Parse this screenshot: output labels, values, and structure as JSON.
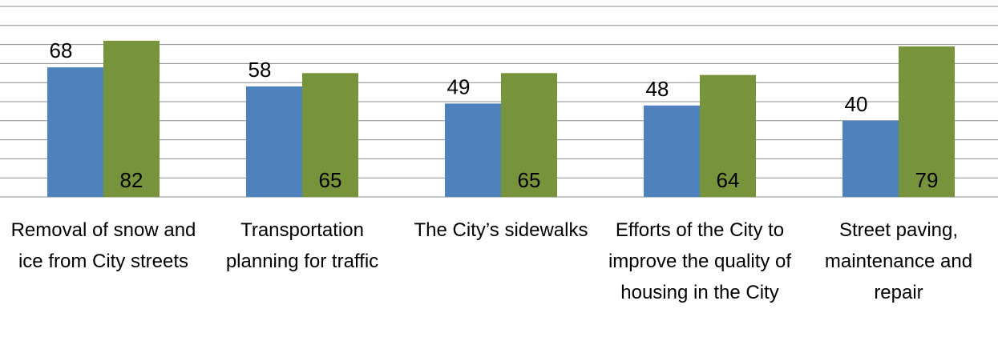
{
  "chart_data": {
    "type": "bar",
    "categories": [
      "Removal of snow and ice from City streets",
      "Transportation planning for traffic",
      "The City’s sidewalks",
      "Efforts of the City to improve the quality of housing in the City",
      "Street paving, maintenance and repair"
    ],
    "series": [
      {
        "color": "#4f81bd",
        "values": [
          68,
          58,
          49,
          48,
          40
        ]
      },
      {
        "color": "#77933c",
        "values": [
          82,
          65,
          65,
          64,
          79
        ]
      }
    ],
    "ylim": [
      0,
      100
    ],
    "yticks": [
      0,
      10,
      20,
      30,
      40,
      50,
      60,
      70,
      80,
      90,
      100
    ],
    "grid": true
  }
}
